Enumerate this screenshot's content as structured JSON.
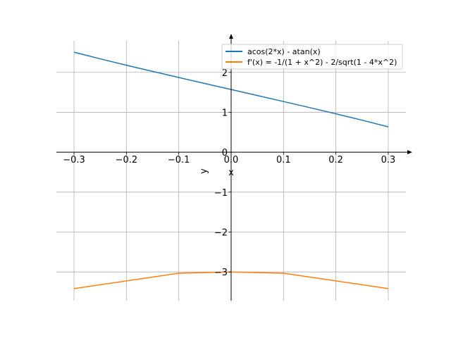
{
  "chart_data": {
    "type": "line",
    "title": "",
    "xlabel": "x",
    "ylabel": "y",
    "xlim": [
      -0.3337,
      0.3337
    ],
    "ylim": [
      -3.72,
      2.79
    ],
    "grid": true,
    "legend_position": "top-right",
    "x_ticks": [
      -0.3,
      -0.2,
      -0.1,
      0.0,
      0.1,
      0.2,
      0.3
    ],
    "x_tick_labels": [
      "−0.3",
      "−0.2",
      "−0.1",
      "0.0",
      "0.1",
      "0.2",
      "0.3"
    ],
    "y_ticks": [
      -3,
      -2,
      -1,
      0,
      1,
      2
    ],
    "y_tick_labels": [
      "−3",
      "−2",
      "−1",
      "0",
      "1",
      "2"
    ],
    "series": [
      {
        "name": "acos(2*x) - atan(x)",
        "color": "#1f77b4",
        "x": [
          -0.3,
          -0.25,
          -0.2,
          -0.15,
          -0.1,
          -0.05,
          0,
          0.05,
          0.1,
          0.15,
          0.2,
          0.25,
          0.3
        ],
        "y": [
          2.5058,
          2.3394,
          2.1797,
          2.0244,
          1.8719,
          1.721,
          1.5708,
          1.4206,
          1.2697,
          1.1172,
          0.9619,
          0.8022,
          0.6358
        ]
      },
      {
        "name": "f'(x) = -1/(1 + x^2) - 2/sqrt(1 - 4*x^2)",
        "color": "#ff7f0e",
        "x": [
          -0.3,
          -0.1,
          0,
          0.1,
          0.3
        ],
        "y": [
          -3.417,
          -3.031,
          -3.0,
          -3.031,
          -3.417
        ]
      }
    ]
  }
}
